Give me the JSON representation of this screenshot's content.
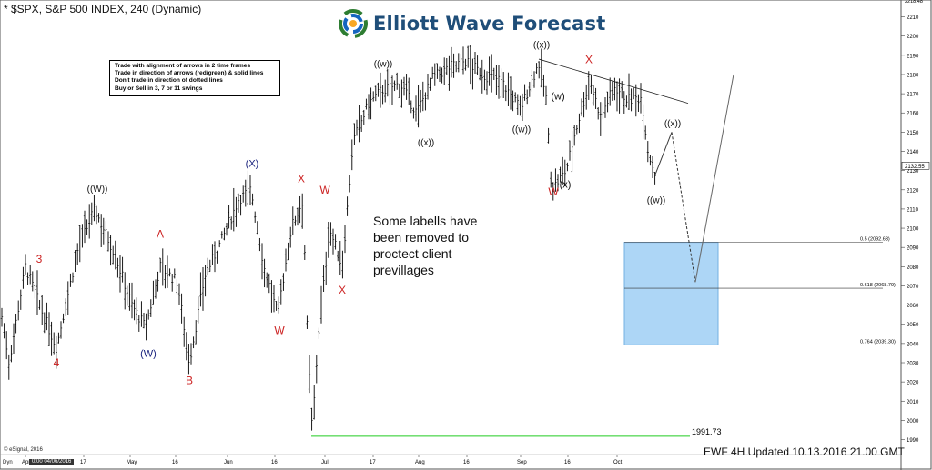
{
  "header": {
    "title": "* $SPX, S&P 500 INDEX, 240 (Dynamic)"
  },
  "brand": {
    "name": "Elliott Wave Forecast",
    "logo_icon": "ewf-swirl-icon",
    "color": "#1f4e79"
  },
  "rules_box": {
    "lines": [
      "Trade with alignment of arrows in 2 time frames",
      "Trade in direction of arrows (red/green) & solid lines",
      "Don't trade in direction of dotted lines",
      "Buy or Sell in 3, 7 or 11 swings"
    ]
  },
  "note": "Some labells have been removed to proctect client previllages",
  "updated": "EWF 4H Updated 10.13.2016 21.00 GMT",
  "footer": {
    "copyright": "© eSignal, 2016",
    "dyn_label": "Dyn",
    "date_cursor": "0:00 04/06/2016"
  },
  "colors": {
    "candle": "#000000",
    "red_label": "#cc2222",
    "blue_label": "#1a237e",
    "fib_zone": "#9fd0f5",
    "low_line": "#22cc22"
  },
  "chart_data": {
    "type": "ohlc",
    "title": "* $SPX, S&P 500 INDEX, 240 (Dynamic)",
    "ylim": [
      1986,
      2215
    ],
    "y_ticks": [
      2210,
      2200,
      2190,
      2180,
      2170,
      2160,
      2150,
      2140,
      2130,
      2120,
      2110,
      2100,
      2090,
      2080,
      2070,
      2060,
      2050,
      2040,
      2030,
      2020,
      2010,
      2000,
      1990
    ],
    "x_ticks": [
      "Apr",
      "17",
      "May",
      "16",
      "Jun",
      "16",
      "Jul",
      "17",
      "Aug",
      "16",
      "Sep",
      "16",
      "Oct"
    ],
    "price_path": [
      {
        "t": 0,
        "v": 2060
      },
      {
        "t": 10,
        "v": 2030
      },
      {
        "t": 28,
        "v": 2080
      },
      {
        "t": 45,
        "v": 2058
      },
      {
        "t": 62,
        "v": 2038
      },
      {
        "t": 85,
        "v": 2088
      },
      {
        "t": 104,
        "v": 2110
      },
      {
        "t": 125,
        "v": 2088
      },
      {
        "t": 145,
        "v": 2060
      },
      {
        "t": 160,
        "v": 2048
      },
      {
        "t": 176,
        "v": 2080
      },
      {
        "t": 195,
        "v": 2072
      },
      {
        "t": 208,
        "v": 2030
      },
      {
        "t": 225,
        "v": 2075
      },
      {
        "t": 245,
        "v": 2095
      },
      {
        "t": 262,
        "v": 2115
      },
      {
        "t": 276,
        "v": 2120
      },
      {
        "t": 290,
        "v": 2080
      },
      {
        "t": 305,
        "v": 2055
      },
      {
        "t": 320,
        "v": 2100
      },
      {
        "t": 333,
        "v": 2115
      },
      {
        "t": 338,
        "v": 2040
      },
      {
        "t": 343,
        "v": 1995
      },
      {
        "t": 350,
        "v": 2045
      },
      {
        "t": 362,
        "v": 2100
      },
      {
        "t": 376,
        "v": 2080
      },
      {
        "t": 388,
        "v": 2145
      },
      {
        "t": 405,
        "v": 2165
      },
      {
        "t": 420,
        "v": 2172
      },
      {
        "t": 440,
        "v": 2175
      },
      {
        "t": 458,
        "v": 2160
      },
      {
        "t": 475,
        "v": 2178
      },
      {
        "t": 495,
        "v": 2184
      },
      {
        "t": 512,
        "v": 2187
      },
      {
        "t": 530,
        "v": 2180
      },
      {
        "t": 550,
        "v": 2177
      },
      {
        "t": 572,
        "v": 2162
      },
      {
        "t": 592,
        "v": 2186
      },
      {
        "t": 600,
        "v": 2168
      },
      {
        "t": 606,
        "v": 2120
      },
      {
        "t": 614,
        "v": 2125
      },
      {
        "t": 622,
        "v": 2130
      },
      {
        "t": 632,
        "v": 2150
      },
      {
        "t": 648,
        "v": 2177
      },
      {
        "t": 660,
        "v": 2158
      },
      {
        "t": 675,
        "v": 2174
      },
      {
        "t": 690,
        "v": 2167
      },
      {
        "t": 705,
        "v": 2168
      },
      {
        "t": 712,
        "v": 2140
      },
      {
        "t": 720,
        "v": 2128
      }
    ],
    "current_price": {
      "label": "2132.55",
      "value": 2132.55
    },
    "top_price": {
      "label": "2218.48",
      "value": 2218.48
    },
    "fib_levels": [
      {
        "label": "0.5 (2092.63)",
        "value": 2092.63
      },
      {
        "label": "0.618 (2068.79)",
        "value": 2068.79
      },
      {
        "label": "0.764 (2039.30)",
        "value": 2039.3
      }
    ],
    "blue_box": {
      "from_value": 2092.63,
      "to_value": 2039.3
    },
    "low_line": {
      "label": "1991.73",
      "value": 1991.73
    },
    "projection_solid": [
      {
        "t": 720,
        "v": 2128
      },
      {
        "t": 738,
        "v": 2150
      }
    ],
    "projection_dashed": [
      {
        "t": 738,
        "v": 2150
      },
      {
        "t": 764,
        "v": 2072
      }
    ],
    "projection_up": [
      {
        "t": 764,
        "v": 2072
      },
      {
        "t": 806,
        "v": 2180
      }
    ],
    "trendline": [
      {
        "t": 592,
        "v": 2188
      },
      {
        "t": 756,
        "v": 2165
      }
    ],
    "wave_labels": [
      {
        "text": "3",
        "t": 43,
        "v": 2082,
        "color": "red"
      },
      {
        "text": "4",
        "t": 62,
        "v": 2028,
        "color": "red"
      },
      {
        "text": "((W))",
        "t": 107,
        "v": 2119,
        "color": "black"
      },
      {
        "text": "A",
        "t": 176,
        "v": 2095,
        "color": "red"
      },
      {
        "text": "(W)",
        "t": 163,
        "v": 2033,
        "color": "blue"
      },
      {
        "text": "B",
        "t": 208,
        "v": 2019,
        "color": "red"
      },
      {
        "text": "(X)",
        "t": 277,
        "v": 2132,
        "color": "blue"
      },
      {
        "text": "W",
        "t": 307,
        "v": 2045,
        "color": "red"
      },
      {
        "text": "X",
        "t": 331,
        "v": 2124,
        "color": "red"
      },
      {
        "text": "W",
        "t": 357,
        "v": 2118,
        "color": "red"
      },
      {
        "text": "X",
        "t": 376,
        "v": 2066,
        "color": "red"
      },
      {
        "text": "((w))",
        "t": 421,
        "v": 2184,
        "color": "black"
      },
      {
        "text": "((x))",
        "t": 468,
        "v": 2143,
        "color": "black"
      },
      {
        "text": "((w))",
        "t": 573,
        "v": 2150,
        "color": "black"
      },
      {
        "text": "((x))",
        "t": 595,
        "v": 2194,
        "color": "black"
      },
      {
        "text": "X",
        "t": 647,
        "v": 2186,
        "color": "red"
      },
      {
        "text": "(w)",
        "t": 613,
        "v": 2167,
        "color": "black"
      },
      {
        "text": "(x)",
        "t": 621,
        "v": 2121,
        "color": "black"
      },
      {
        "text": "W",
        "t": 608,
        "v": 2117,
        "color": "red"
      },
      {
        "text": "((x))",
        "t": 739,
        "v": 2153,
        "color": "black"
      },
      {
        "text": "((w))",
        "t": 721,
        "v": 2113,
        "color": "black"
      }
    ]
  }
}
